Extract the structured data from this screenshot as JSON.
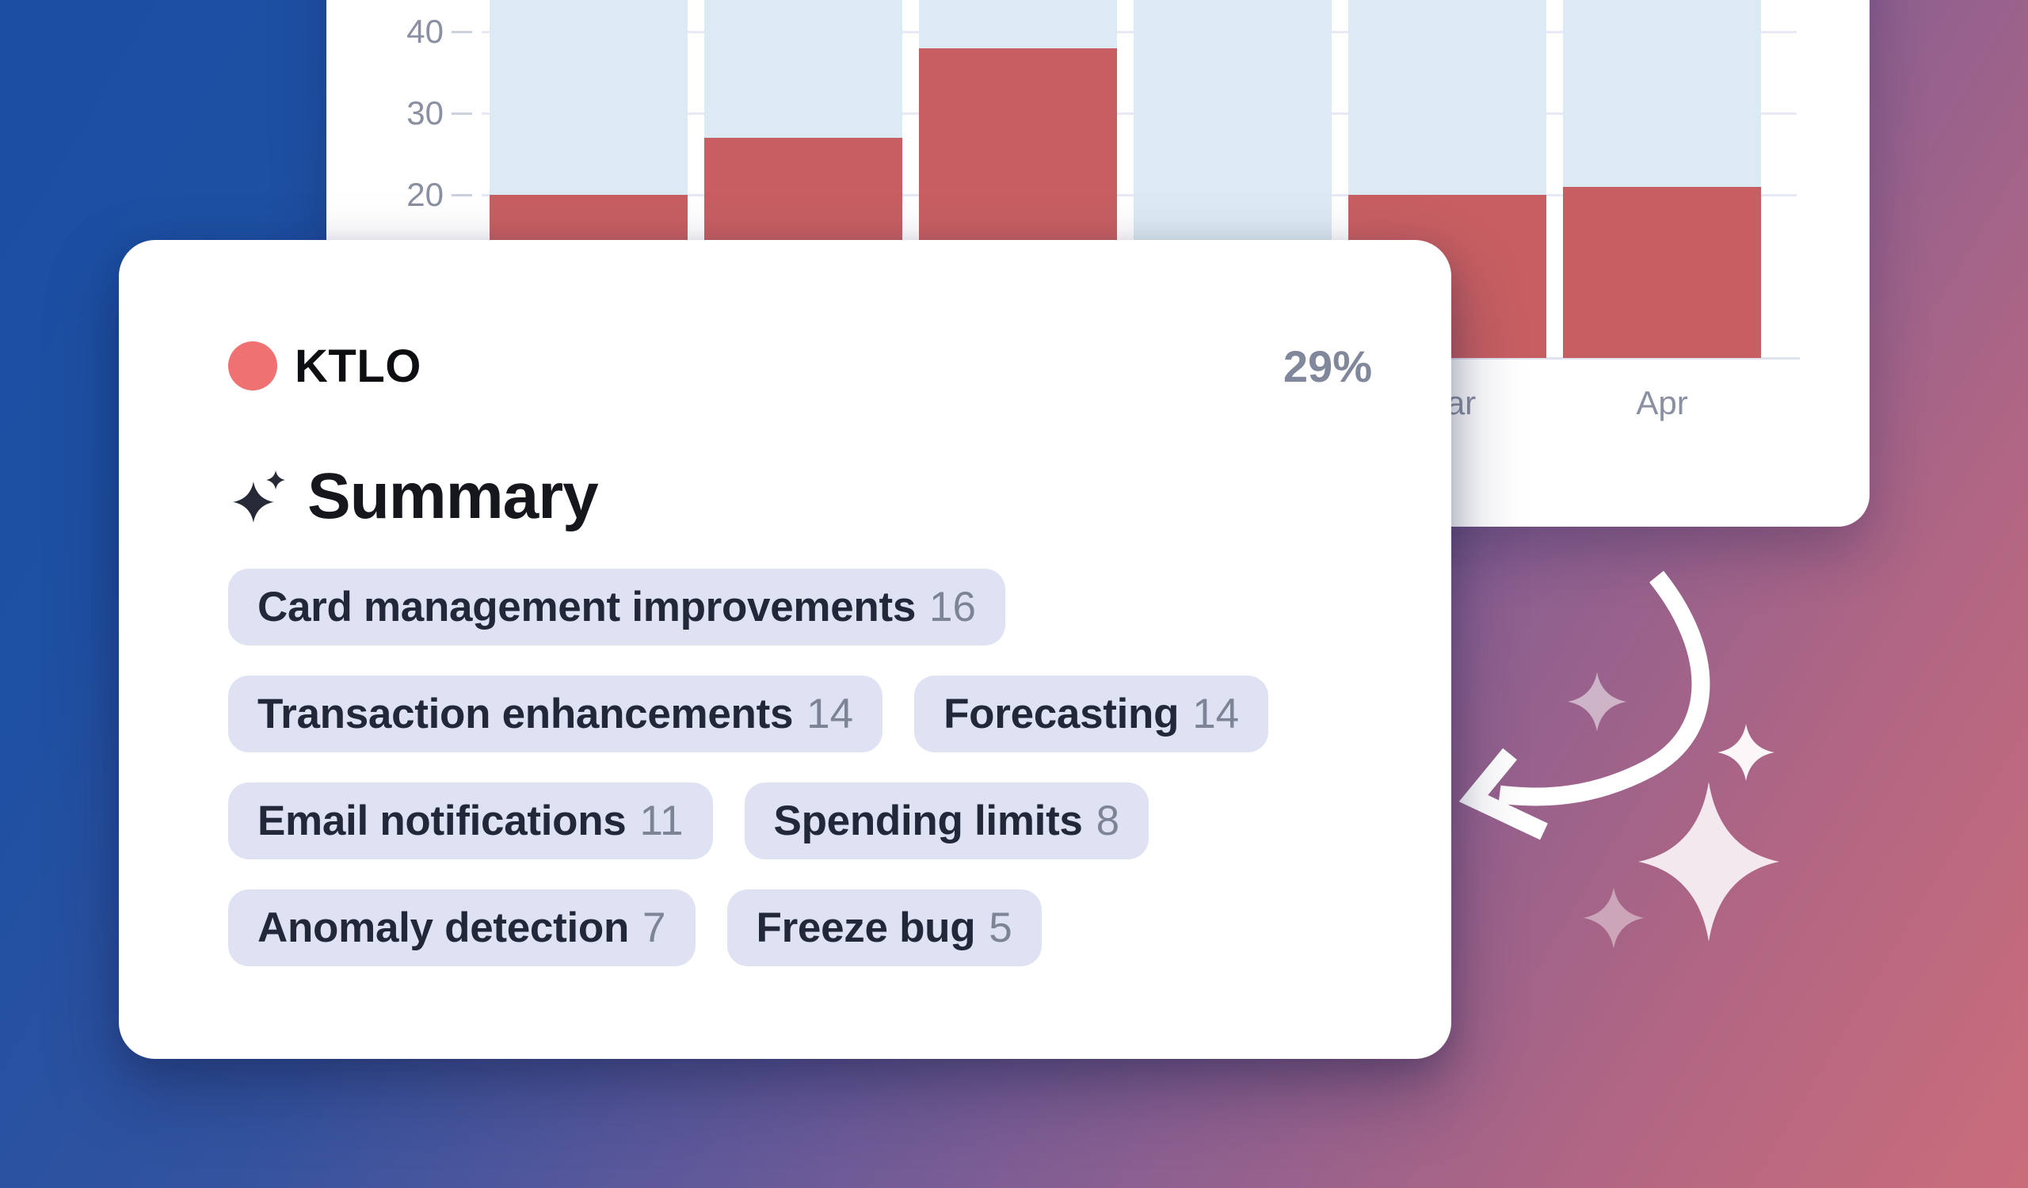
{
  "background": {
    "gradient": [
      "#1a4fa4",
      "#33539f",
      "#62599a",
      "#8d6090",
      "#b26683",
      "#ca6d7b"
    ]
  },
  "chart_card": {
    "chart_data": {
      "type": "bar",
      "categories": [
        "",
        "",
        "",
        "",
        "Mar",
        "Apr"
      ],
      "series": [
        {
          "name": "KTLO",
          "color": "#c75f62",
          "values": [
            20,
            27,
            38,
            null,
            20,
            21
          ]
        },
        {
          "name": "column-background",
          "color": "#dceaf3",
          "values": [
            44,
            44,
            44,
            44,
            44,
            44
          ]
        }
      ],
      "title": "",
      "xlabel": "",
      "ylabel": "",
      "yticks": [
        40,
        30,
        20
      ],
      "ylim": [
        0,
        44
      ],
      "grid": true,
      "legend_position": "none"
    },
    "ytick_labels": [
      "40",
      "30",
      "20"
    ],
    "visible_month_labels": [
      "Mar",
      "Apr"
    ]
  },
  "summary_card": {
    "legend": {
      "label": "KTLO",
      "value": "29%",
      "dot_color": "#f07172"
    },
    "heading": {
      "icon": "sparkles-icon",
      "text": "Summary"
    },
    "tags": [
      {
        "label": "Card management improvements",
        "count": "16"
      },
      {
        "label": "Transaction enhancements",
        "count": "14"
      },
      {
        "label": "Forecasting",
        "count": "14"
      },
      {
        "label": "Email notifications",
        "count": "11"
      },
      {
        "label": "Spending limits",
        "count": "8"
      },
      {
        "label": "Anomaly detection",
        "count": "7"
      },
      {
        "label": "Freeze bug",
        "count": "5"
      }
    ],
    "tag_rows": [
      [
        0
      ],
      [
        1,
        2
      ],
      [
        3,
        4
      ],
      [
        5,
        6
      ]
    ]
  },
  "decor": {
    "arrow_color": "#ffffff",
    "sparkle_colors": {
      "small_top": "rgba(255,255,255,0.52)",
      "mid_white": "rgba(255,255,255,0.95)",
      "large": "rgba(255,255,255,0.85)",
      "small_low": "rgba(255,255,255,0.42)"
    }
  }
}
